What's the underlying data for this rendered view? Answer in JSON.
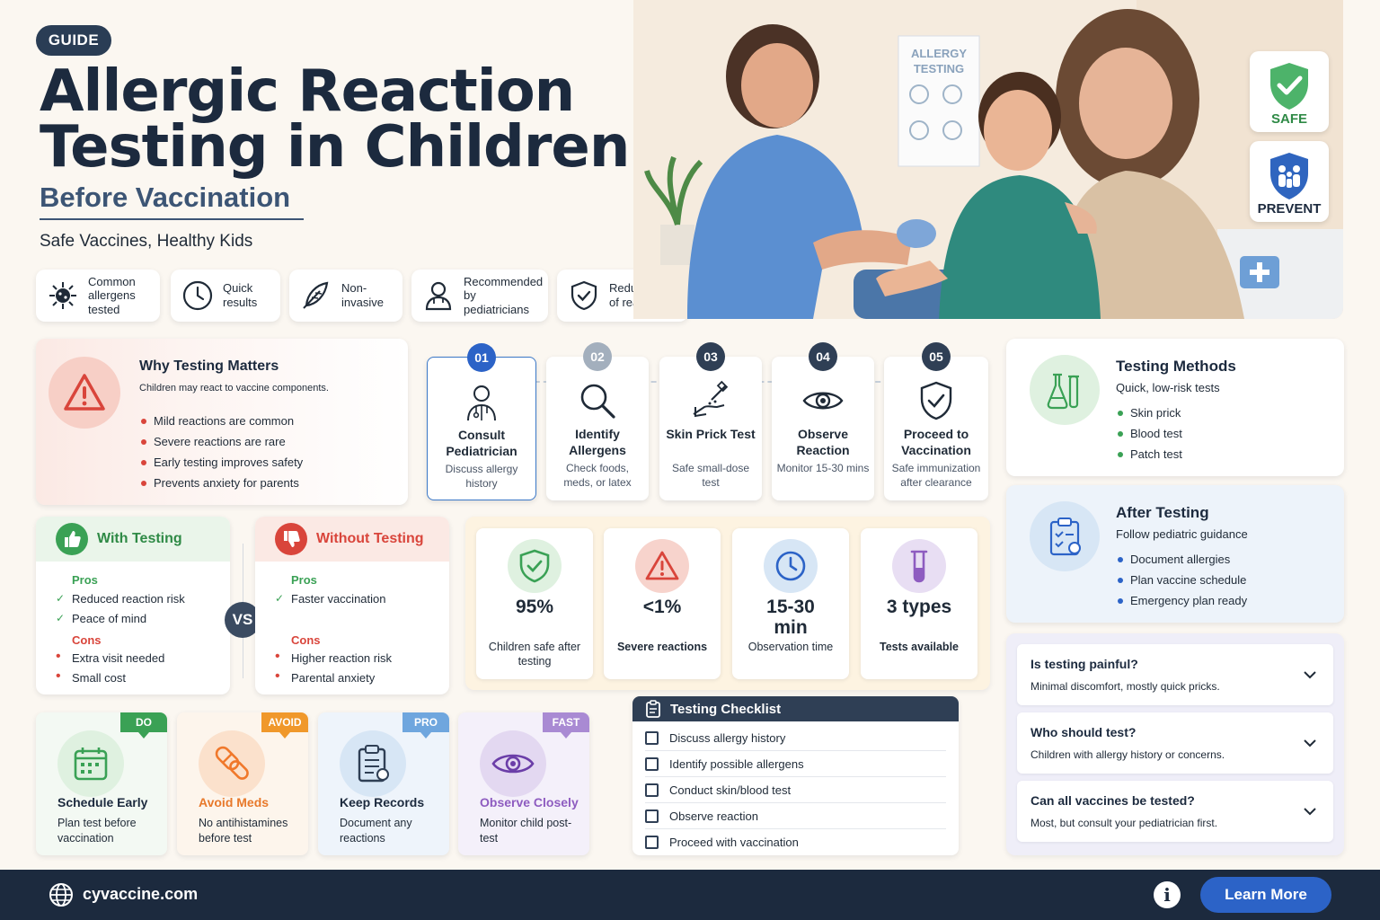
{
  "header": {
    "badge": "GUIDE",
    "title_line1": "Allergic Reaction",
    "title_line2": "Testing in Children",
    "subtitle": "Before Vaccination",
    "tagline": "Safe Vaccines, Healthy Kids"
  },
  "features": [
    {
      "icon": "allergen-virus-icon",
      "label": "Common allergens tested"
    },
    {
      "icon": "clock-icon",
      "label": "Quick results"
    },
    {
      "icon": "feather-icon",
      "label": "Non-invasive"
    },
    {
      "icon": "doctor-icon",
      "label": "Recommended by pediatricians"
    },
    {
      "icon": "shield-check-icon",
      "label": "Reduces risk of reactions"
    }
  ],
  "hero": {
    "poster_text": "ALLERGY TESTING",
    "badges": [
      {
        "label": "SAFE",
        "icon": "shield-check-icon",
        "color": "#3aa155"
      },
      {
        "label": "PREVENT",
        "icon": "family-shield-icon",
        "color": "#2a5fb8"
      }
    ]
  },
  "why": {
    "title": "Why Testing Matters",
    "intro": "Children may react to vaccine components.",
    "bullets": [
      "Mild reactions are common",
      "Severe reactions are rare",
      "Early testing improves safety",
      "Prevents anxiety for parents"
    ]
  },
  "steps": [
    {
      "num": "01",
      "icon": "pediatrician-icon",
      "title": "Consult Pediatrician",
      "desc": "Discuss allergy history"
    },
    {
      "num": "02",
      "icon": "magnifier-icon",
      "title": "Identify Allergens",
      "desc": "Check foods, meds, or latex"
    },
    {
      "num": "03",
      "icon": "skin-prick-icon",
      "title": "Skin Prick Test",
      "desc": "Safe small-dose test"
    },
    {
      "num": "04",
      "icon": "eye-icon",
      "title": "Observe Reaction",
      "desc": "Monitor 15-30 mins"
    },
    {
      "num": "05",
      "icon": "shield-check-icon",
      "title": "Proceed to Vaccination",
      "desc": "Safe immunization after clearance"
    }
  ],
  "methods": {
    "title": "Testing Methods",
    "subtitle": "Quick, low-risk tests",
    "items": [
      "Skin prick",
      "Blood test",
      "Patch test"
    ]
  },
  "after": {
    "title": "After Testing",
    "subtitle": "Follow pediatric guidance",
    "items": [
      "Document allergies",
      "Plan vaccine schedule",
      "Emergency plan ready"
    ]
  },
  "with_testing": {
    "title": "With Testing",
    "pros_label": "Pros",
    "pros": [
      "Reduced reaction risk",
      "Peace of mind"
    ],
    "cons_label": "Cons",
    "cons": [
      "Extra visit needed",
      "Small cost"
    ]
  },
  "vs_label": "VS",
  "without_testing": {
    "title": "Without Testing",
    "pros_label": "Pros",
    "pros": [
      "Faster vaccination"
    ],
    "cons_label": "Cons",
    "cons": [
      "Higher reaction risk",
      "Parental anxiety"
    ]
  },
  "stats": [
    {
      "icon": "shield-check-icon",
      "value": "95%",
      "caption": "Children safe after testing"
    },
    {
      "icon": "warning-icon",
      "value": "<1%",
      "caption": "Severe reactions"
    },
    {
      "icon": "clock-icon",
      "value": "15-30 min",
      "caption": "Observation time"
    },
    {
      "icon": "test-tube-icon",
      "value": "3 types",
      "caption": "Tests available"
    }
  ],
  "tips": [
    {
      "tag": "DO",
      "icon": "calendar-icon",
      "title": "Schedule Early",
      "desc": "Plan test before vaccination",
      "color": "#3aa155"
    },
    {
      "tag": "AVOID",
      "icon": "pill-icon",
      "title": "Avoid Meds",
      "desc": "No antihistamines before test",
      "color": "#f0982b"
    },
    {
      "tag": "PRO",
      "icon": "clipboard-icon",
      "title": "Keep Records",
      "desc": "Document any reactions",
      "color": "#5b9bd5"
    },
    {
      "tag": "FAST",
      "icon": "eye-icon",
      "title": "Observe Closely",
      "desc": "Monitor child post-test",
      "color": "#9b7fc9"
    }
  ],
  "checklist": {
    "title": "Testing Checklist",
    "items": [
      "Discuss allergy history",
      "Identify possible allergens",
      "Conduct skin/blood test",
      "Observe reaction",
      "Proceed with vaccination"
    ]
  },
  "faq": [
    {
      "q": "Is testing painful?",
      "a": "Minimal discomfort, mostly quick pricks."
    },
    {
      "q": "Who should test?",
      "a": "Children with allergy history or concerns."
    },
    {
      "q": "Can all vaccines be tested?",
      "a": "Most, but consult your pediatrician first."
    }
  ],
  "footer": {
    "site": "cyvaccine.com",
    "cta": "Learn More"
  }
}
